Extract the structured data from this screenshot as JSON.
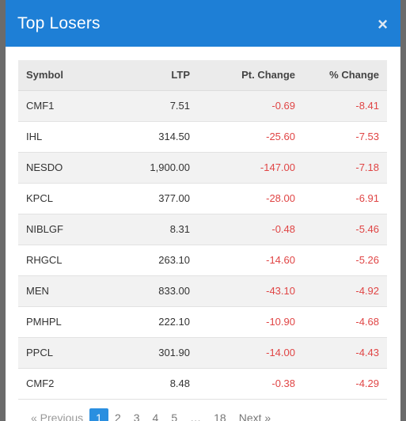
{
  "modal": {
    "title": "Top Losers",
    "close_label": "×"
  },
  "table": {
    "headers": {
      "symbol": "Symbol",
      "ltp": "LTP",
      "pt_change": "Pt. Change",
      "pct_change": "% Change"
    },
    "rows": [
      {
        "symbol": "CMF1",
        "ltp": "7.51",
        "pt_change": "-0.69",
        "pct_change": "-8.41"
      },
      {
        "symbol": "IHL",
        "ltp": "314.50",
        "pt_change": "-25.60",
        "pct_change": "-7.53"
      },
      {
        "symbol": "NESDO",
        "ltp": "1,900.00",
        "pt_change": "-147.00",
        "pct_change": "-7.18"
      },
      {
        "symbol": "KPCL",
        "ltp": "377.00",
        "pt_change": "-28.00",
        "pct_change": "-6.91"
      },
      {
        "symbol": "NIBLGF",
        "ltp": "8.31",
        "pt_change": "-0.48",
        "pct_change": "-5.46"
      },
      {
        "symbol": "RHGCL",
        "ltp": "263.10",
        "pt_change": "-14.60",
        "pct_change": "-5.26"
      },
      {
        "symbol": "MEN",
        "ltp": "833.00",
        "pt_change": "-43.10",
        "pct_change": "-4.92"
      },
      {
        "symbol": "PMHPL",
        "ltp": "222.10",
        "pt_change": "-10.90",
        "pct_change": "-4.68"
      },
      {
        "symbol": "PPCL",
        "ltp": "301.90",
        "pt_change": "-14.00",
        "pct_change": "-4.43"
      },
      {
        "symbol": "CMF2",
        "ltp": "8.48",
        "pt_change": "-0.38",
        "pct_change": "-4.29"
      }
    ]
  },
  "pagination": {
    "previous": "« Previous",
    "pages": [
      "1",
      "2",
      "3",
      "4",
      "5",
      "…",
      "18"
    ],
    "active": "1",
    "next": "Next »"
  },
  "colors": {
    "header": "#1e7fd6",
    "negative": "#e04545",
    "active_page": "#2a8fe0"
  }
}
